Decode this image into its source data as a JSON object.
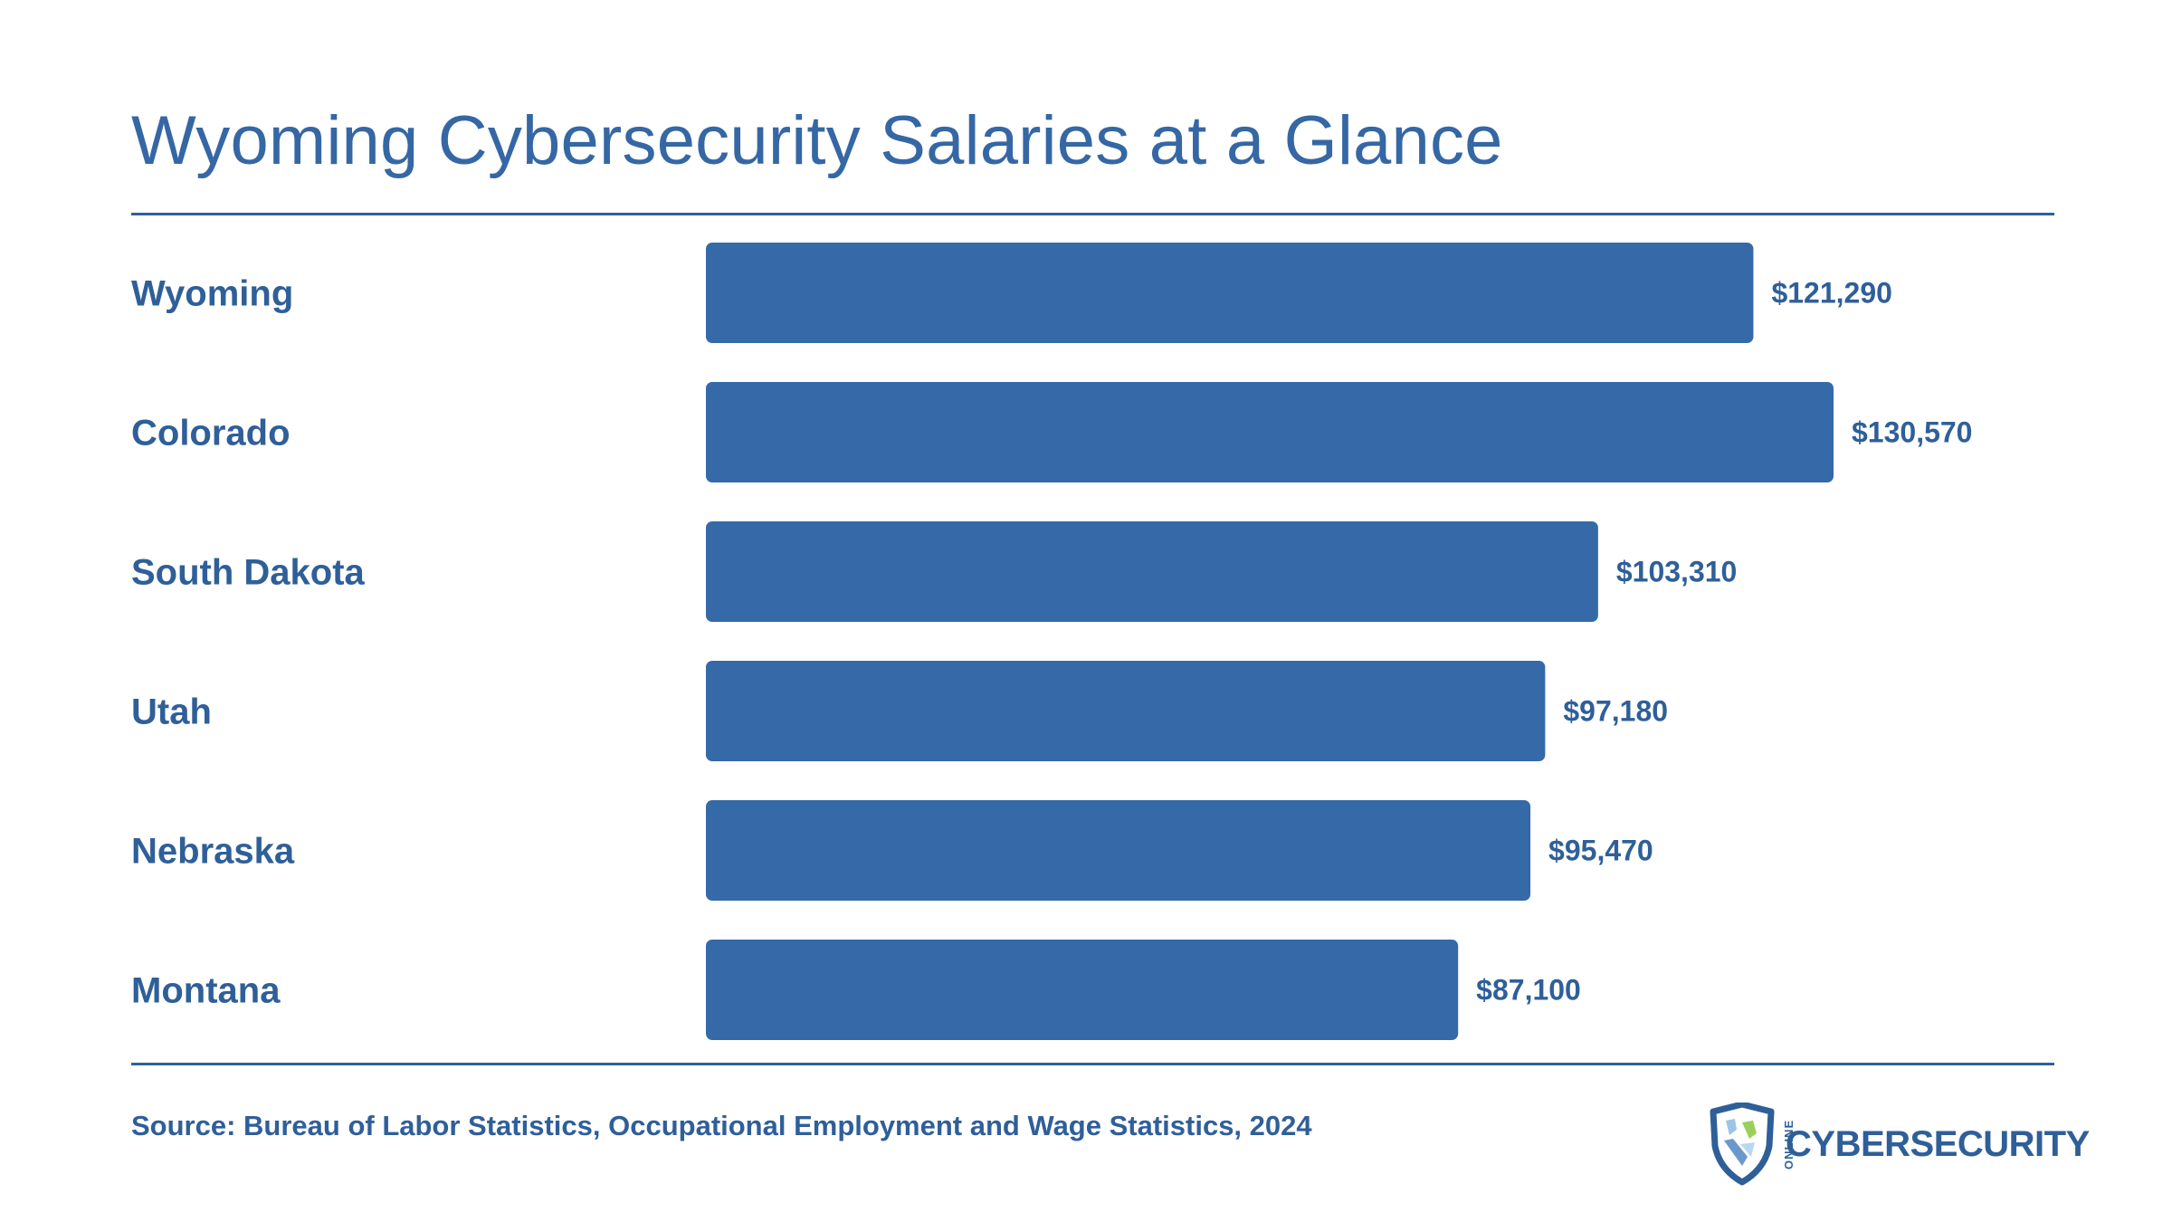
{
  "title": "Wyoming Cybersecurity Salaries at a Glance",
  "source": "Source: Bureau of Labor Statistics, Occupational Employment and Wage Statistics, 2024",
  "logo": {
    "small_text": "ONLINE",
    "word": "CYBERSECURITY",
    "icon": "shield-icon"
  },
  "colors": {
    "bar": "#3569a8",
    "text": "#2f5f99"
  },
  "chart_data": {
    "type": "bar",
    "orientation": "horizontal",
    "title": "Wyoming Cybersecurity Salaries at a Glance",
    "categories": [
      "Wyoming",
      "Colorado",
      "South Dakota",
      "Utah",
      "Nebraska",
      "Montana"
    ],
    "values": [
      121290,
      130570,
      103310,
      97180,
      95470,
      87100
    ],
    "value_labels": [
      "$121,290",
      "$130,570",
      "$103,310",
      "$97,180",
      "$95,470",
      "$87,100"
    ],
    "xlim": [
      0,
      130570
    ],
    "grid": false,
    "legend": "none"
  }
}
